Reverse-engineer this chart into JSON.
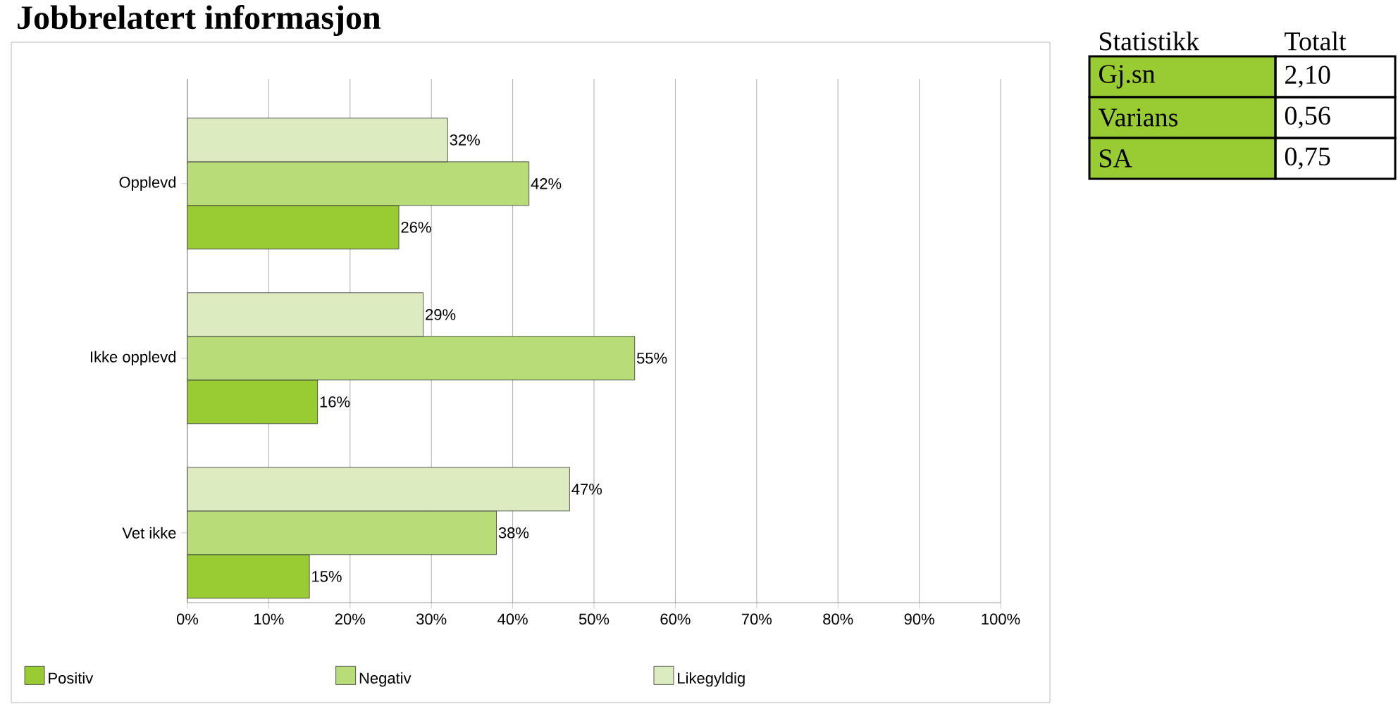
{
  "chart_data": [
    {
      "type": "bar",
      "orientation": "horizontal",
      "title": "Jobbrelatert informasjon",
      "categories": [
        "Opplevd",
        "Ikke opplevd",
        "Vet ikke"
      ],
      "series": [
        {
          "name": "Positiv",
          "color": "#99cc33",
          "values": [
            26,
            16,
            15
          ],
          "value_labels": [
            "26%",
            "16%",
            "15%"
          ]
        },
        {
          "name": "Negativ",
          "color": "#b8dc78",
          "values": [
            42,
            55,
            38
          ],
          "value_labels": [
            "42%",
            "55%",
            "38%"
          ]
        },
        {
          "name": "Likegyldig",
          "color": "#dcecc0",
          "values": [
            32,
            29,
            47
          ],
          "value_labels": [
            "32%",
            "29%",
            "47%"
          ]
        }
      ],
      "xlim": [
        0,
        100
      ],
      "xticks": [
        {
          "value": 0,
          "label": "0%"
        },
        {
          "value": 10,
          "label": "10%"
        },
        {
          "value": 20,
          "label": "20%"
        },
        {
          "value": 30,
          "label": "30%"
        },
        {
          "value": 40,
          "label": "40%"
        },
        {
          "value": 50,
          "label": "50%"
        },
        {
          "value": 60,
          "label": "60%"
        },
        {
          "value": 70,
          "label": "70%"
        },
        {
          "value": 80,
          "label": "80%"
        },
        {
          "value": 90,
          "label": "90%"
        },
        {
          "value": 100,
          "label": "100%"
        }
      ],
      "grid": "x",
      "legend": "bottom"
    },
    {
      "type": "other",
      "annotations": [
        "Statistikk",
        "Totalt",
        "Gj.sn",
        "2,10",
        "Varians",
        "0,56",
        "SA",
        "0,75"
      ],
      "color": "#99cc33"
    }
  ]
}
